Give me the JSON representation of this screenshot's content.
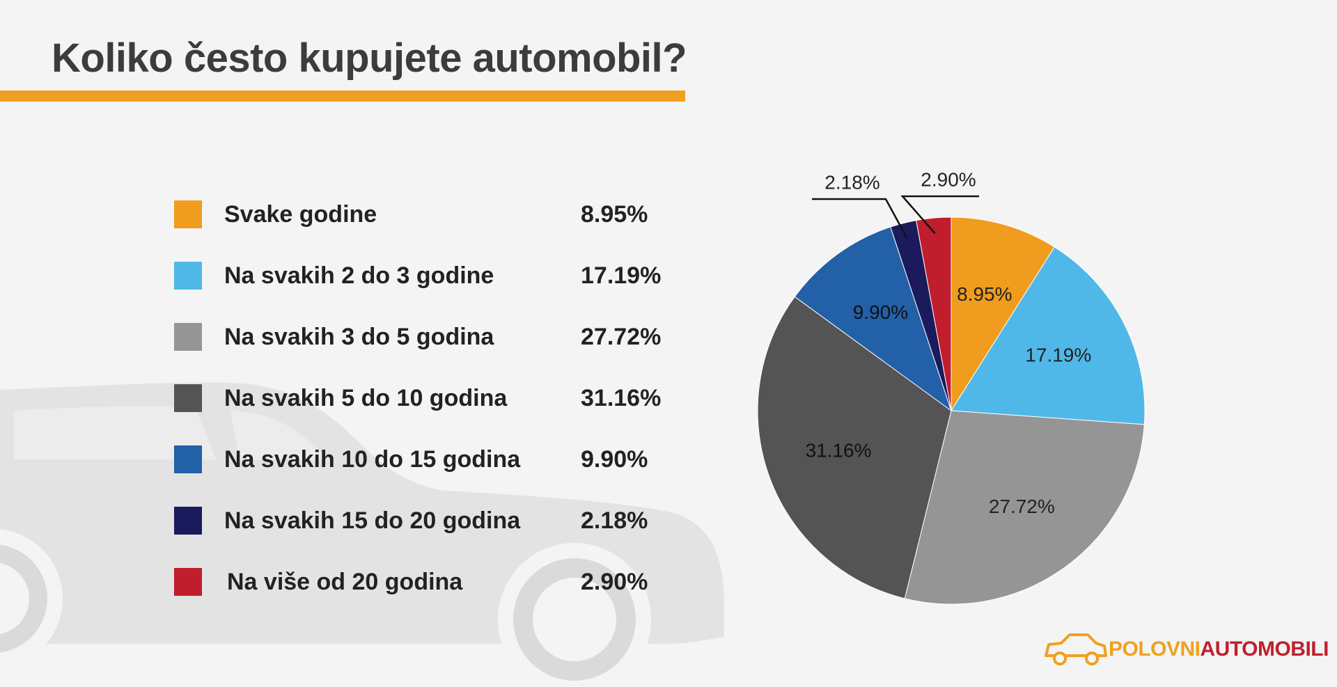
{
  "title": "Koliko često kupujete automobil?",
  "colors": {
    "accent": "#f0a020",
    "brand_red": "#c0202c"
  },
  "chart_data": {
    "type": "pie",
    "title": "Koliko često kupujete automobil?",
    "legend_position": "left",
    "slices": [
      {
        "label": "Svake godine",
        "value": 8.95,
        "display": "8.95%",
        "color": "#f09c1e",
        "text_color": "#222222"
      },
      {
        "label": "Na svakih 2 do 3 godine",
        "value": 17.19,
        "display": "17.19%",
        "color": "#50b8e8",
        "text_color": "#222222"
      },
      {
        "label": "Na svakih 3 do 5 godina",
        "value": 27.72,
        "display": "27.72%",
        "color": "#959595",
        "text_color": "#222222"
      },
      {
        "label": "Na svakih 5 do 10 godina",
        "value": 31.16,
        "display": "31.16%",
        "color": "#545454",
        "text_color": "#111111"
      },
      {
        "label": "Na svakih 10 do 15 godina",
        "value": 9.9,
        "display": "9.90%",
        "color": "#2260a8",
        "text_color": "#111111"
      },
      {
        "label": "Na svakih 15 do 20 godina",
        "value": 2.18,
        "display": "2.18%",
        "color": "#1a1a5c",
        "text_color": "#222222"
      },
      {
        "label": "Na više od 20 godina",
        "value": 2.9,
        "display": "2.90%",
        "color": "#c01e2c",
        "text_color": "#222222"
      }
    ]
  },
  "logo": {
    "part1": "POLOVNI",
    "part2": "AUTOMOBILI",
    "icon": "car-outline-icon"
  }
}
